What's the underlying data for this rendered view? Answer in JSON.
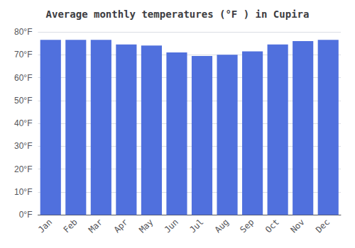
{
  "chart_data": {
    "type": "bar",
    "title": "Average monthly temperatures (°F ) in Cupira",
    "categories": [
      "Jan",
      "Feb",
      "Mar",
      "Apr",
      "May",
      "Jun",
      "Jul",
      "Aug",
      "Sep",
      "Oct",
      "Nov",
      "Dec"
    ],
    "values": [
      76.5,
      76.5,
      76.5,
      74.5,
      74.0,
      71.0,
      69.5,
      70.0,
      71.5,
      74.5,
      76.0,
      76.5
    ],
    "ylim": [
      0,
      80
    ],
    "yticks": [
      {
        "value": 0,
        "label": "0°F"
      },
      {
        "value": 10,
        "label": "10°F"
      },
      {
        "value": 20,
        "label": "20°F"
      },
      {
        "value": 30,
        "label": "30°F"
      },
      {
        "value": 40,
        "label": "40°F"
      },
      {
        "value": 50,
        "label": "50°F"
      },
      {
        "value": 60,
        "label": "60°F"
      },
      {
        "value": 70,
        "label": "70°F"
      },
      {
        "value": 80,
        "label": "80°F"
      }
    ],
    "grid": true
  }
}
